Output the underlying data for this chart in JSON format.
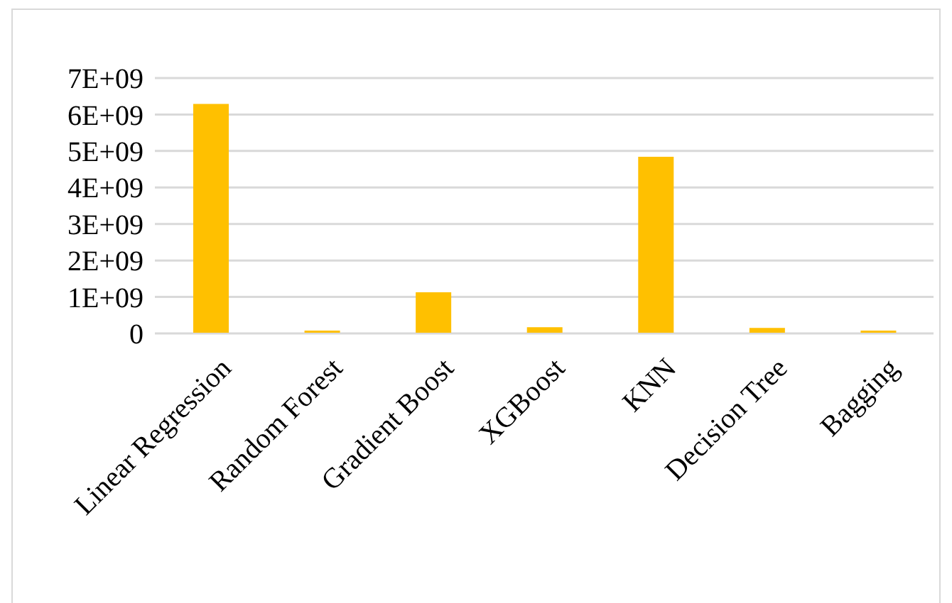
{
  "chart_data": {
    "type": "bar",
    "categories": [
      "Linear Regression",
      "Random Forest",
      "Gradient Boost",
      "XGBoost",
      "KNN",
      "Decision Tree",
      "Bagging"
    ],
    "values": [
      6290000000,
      80000000,
      1130000000,
      170000000,
      4840000000,
      150000000,
      80000000
    ],
    "color": "#ffc000",
    "ylim": [
      0,
      7000000000
    ],
    "yticks": [
      0,
      {
        "value": 1000000000,
        "label": "1E+09"
      },
      {
        "value": 2000000000,
        "label": "2E+09"
      },
      {
        "value": 3000000000,
        "label": "3E+09"
      },
      {
        "value": 4000000000,
        "label": "4E+09"
      },
      {
        "value": 5000000000,
        "label": "5E+09"
      },
      {
        "value": 6000000000,
        "label": "6E+09"
      },
      {
        "value": 7000000000,
        "label": "7E+09"
      }
    ],
    "grid": "y",
    "legend": false
  }
}
